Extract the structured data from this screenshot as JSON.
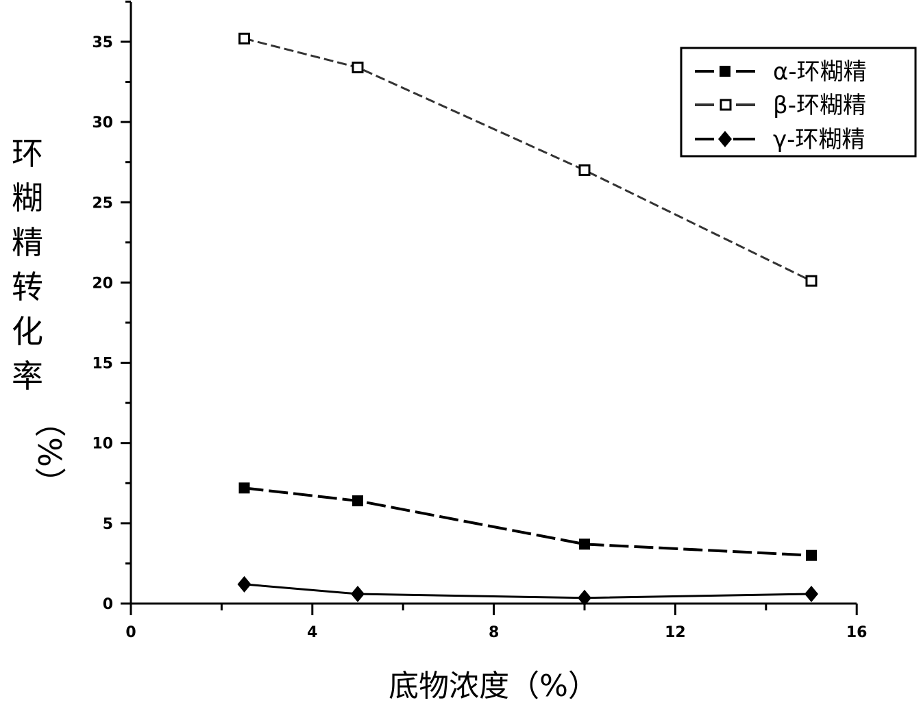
{
  "chart_data": {
    "type": "line",
    "title": "",
    "xlabel": "底物浓度（%）",
    "ylabel": "环糊精转化率（%）",
    "ylabel_chars": [
      "环",
      "糊",
      "精",
      "转",
      "化",
      "率"
    ],
    "ylabel_unit": "（%）",
    "xlim": [
      0,
      16
    ],
    "ylim": [
      0,
      37.5
    ],
    "x_ticks": [
      0,
      4,
      8,
      12,
      16
    ],
    "x_tick_labels": [
      "0",
      "4",
      "8",
      "12",
      "16"
    ],
    "y_ticks": [
      0,
      5,
      10,
      15,
      20,
      25,
      30,
      35
    ],
    "y_tick_labels": [
      "0",
      "5",
      "10",
      "15",
      "20",
      "25",
      "30",
      "35"
    ],
    "grid": false,
    "legend_position": "upper right",
    "x": [
      2.5,
      5,
      10,
      15
    ],
    "series": [
      {
        "name": "α-环糊精",
        "marker": "filled-square",
        "color": "#000000",
        "values": [
          7.2,
          6.4,
          3.7,
          3.0
        ]
      },
      {
        "name": "β-环糊精",
        "marker": "open-square",
        "color": "#333333",
        "values": [
          35.2,
          33.4,
          27.0,
          20.1
        ]
      },
      {
        "name": "γ-环糊精",
        "marker": "filled-diamond",
        "color": "#000000",
        "values": [
          1.2,
          0.6,
          0.35,
          0.6
        ]
      }
    ]
  },
  "legend": {
    "items": [
      {
        "label": "α-环糊精"
      },
      {
        "label": "β-环糊精"
      },
      {
        "label": "γ-环糊精"
      }
    ]
  }
}
